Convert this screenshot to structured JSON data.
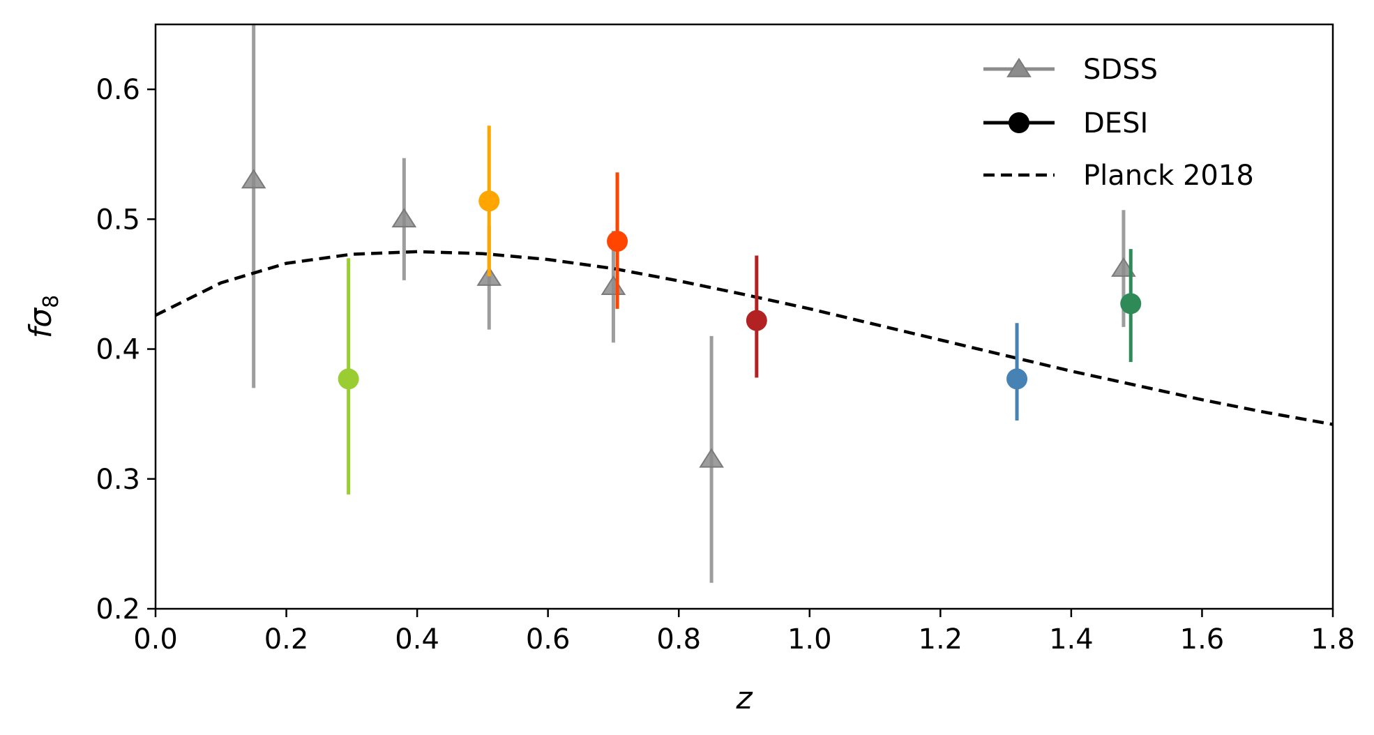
{
  "chart_data": {
    "type": "scatter",
    "xlabel": "z",
    "ylabel_main": "fσ",
    "ylabel_sub": "8",
    "xlim": [
      0.0,
      1.8
    ],
    "ylim": [
      0.2,
      0.65
    ],
    "xticks": [
      "0.0",
      "0.2",
      "0.4",
      "0.6",
      "0.8",
      "1.0",
      "1.2",
      "1.4",
      "1.6",
      "1.8"
    ],
    "yticks": [
      "0.2",
      "0.3",
      "0.4",
      "0.5",
      "0.6"
    ],
    "grid": false,
    "legend_position": "top-right",
    "series": [
      {
        "name": "SDSS",
        "marker": "triangle",
        "color": "#8c8c8c",
        "points": [
          {
            "x": 0.15,
            "y": 0.53,
            "ylo": 0.37,
            "yhi": 0.69
          },
          {
            "x": 0.38,
            "y": 0.5,
            "ylo": 0.453,
            "yhi": 0.547
          },
          {
            "x": 0.51,
            "y": 0.455,
            "ylo": 0.415,
            "yhi": 0.495
          },
          {
            "x": 0.7,
            "y": 0.448,
            "ylo": 0.405,
            "yhi": 0.491
          },
          {
            "x": 0.85,
            "y": 0.315,
            "ylo": 0.22,
            "yhi": 0.41
          },
          {
            "x": 1.48,
            "y": 0.462,
            "ylo": 0.417,
            "yhi": 0.507
          }
        ]
      },
      {
        "name": "DESI",
        "marker": "circle",
        "color": "#000000",
        "points": [
          {
            "x": 0.295,
            "y": 0.377,
            "ylo": 0.288,
            "yhi": 0.47,
            "color": "#9acd32"
          },
          {
            "x": 0.51,
            "y": 0.514,
            "ylo": 0.456,
            "yhi": 0.572,
            "color": "#ffa500"
          },
          {
            "x": 0.706,
            "y": 0.483,
            "ylo": 0.431,
            "yhi": 0.536,
            "color": "#ff4500"
          },
          {
            "x": 0.919,
            "y": 0.422,
            "ylo": 0.378,
            "yhi": 0.472,
            "color": "#b22222"
          },
          {
            "x": 1.317,
            "y": 0.377,
            "ylo": 0.345,
            "yhi": 0.42,
            "color": "#4682b4"
          },
          {
            "x": 1.491,
            "y": 0.435,
            "ylo": 0.39,
            "yhi": 0.477,
            "color": "#2e8b57"
          }
        ]
      },
      {
        "name": "Planck 2018",
        "marker": "none",
        "style": "dashed",
        "color": "#000000",
        "points": [
          {
            "x": 0.0,
            "y": 0.426
          },
          {
            "x": 0.1,
            "y": 0.451
          },
          {
            "x": 0.2,
            "y": 0.466
          },
          {
            "x": 0.3,
            "y": 0.473
          },
          {
            "x": 0.4,
            "y": 0.475
          },
          {
            "x": 0.5,
            "y": 0.4735
          },
          {
            "x": 0.6,
            "y": 0.469
          },
          {
            "x": 0.7,
            "y": 0.462
          },
          {
            "x": 0.8,
            "y": 0.4525
          },
          {
            "x": 0.9,
            "y": 0.442
          },
          {
            "x": 1.0,
            "y": 0.431
          },
          {
            "x": 1.1,
            "y": 0.419
          },
          {
            "x": 1.2,
            "y": 0.407
          },
          {
            "x": 1.3,
            "y": 0.395
          },
          {
            "x": 1.4,
            "y": 0.383
          },
          {
            "x": 1.5,
            "y": 0.372
          },
          {
            "x": 1.6,
            "y": 0.361
          },
          {
            "x": 1.7,
            "y": 0.351
          },
          {
            "x": 1.8,
            "y": 0.342
          }
        ]
      }
    ]
  }
}
